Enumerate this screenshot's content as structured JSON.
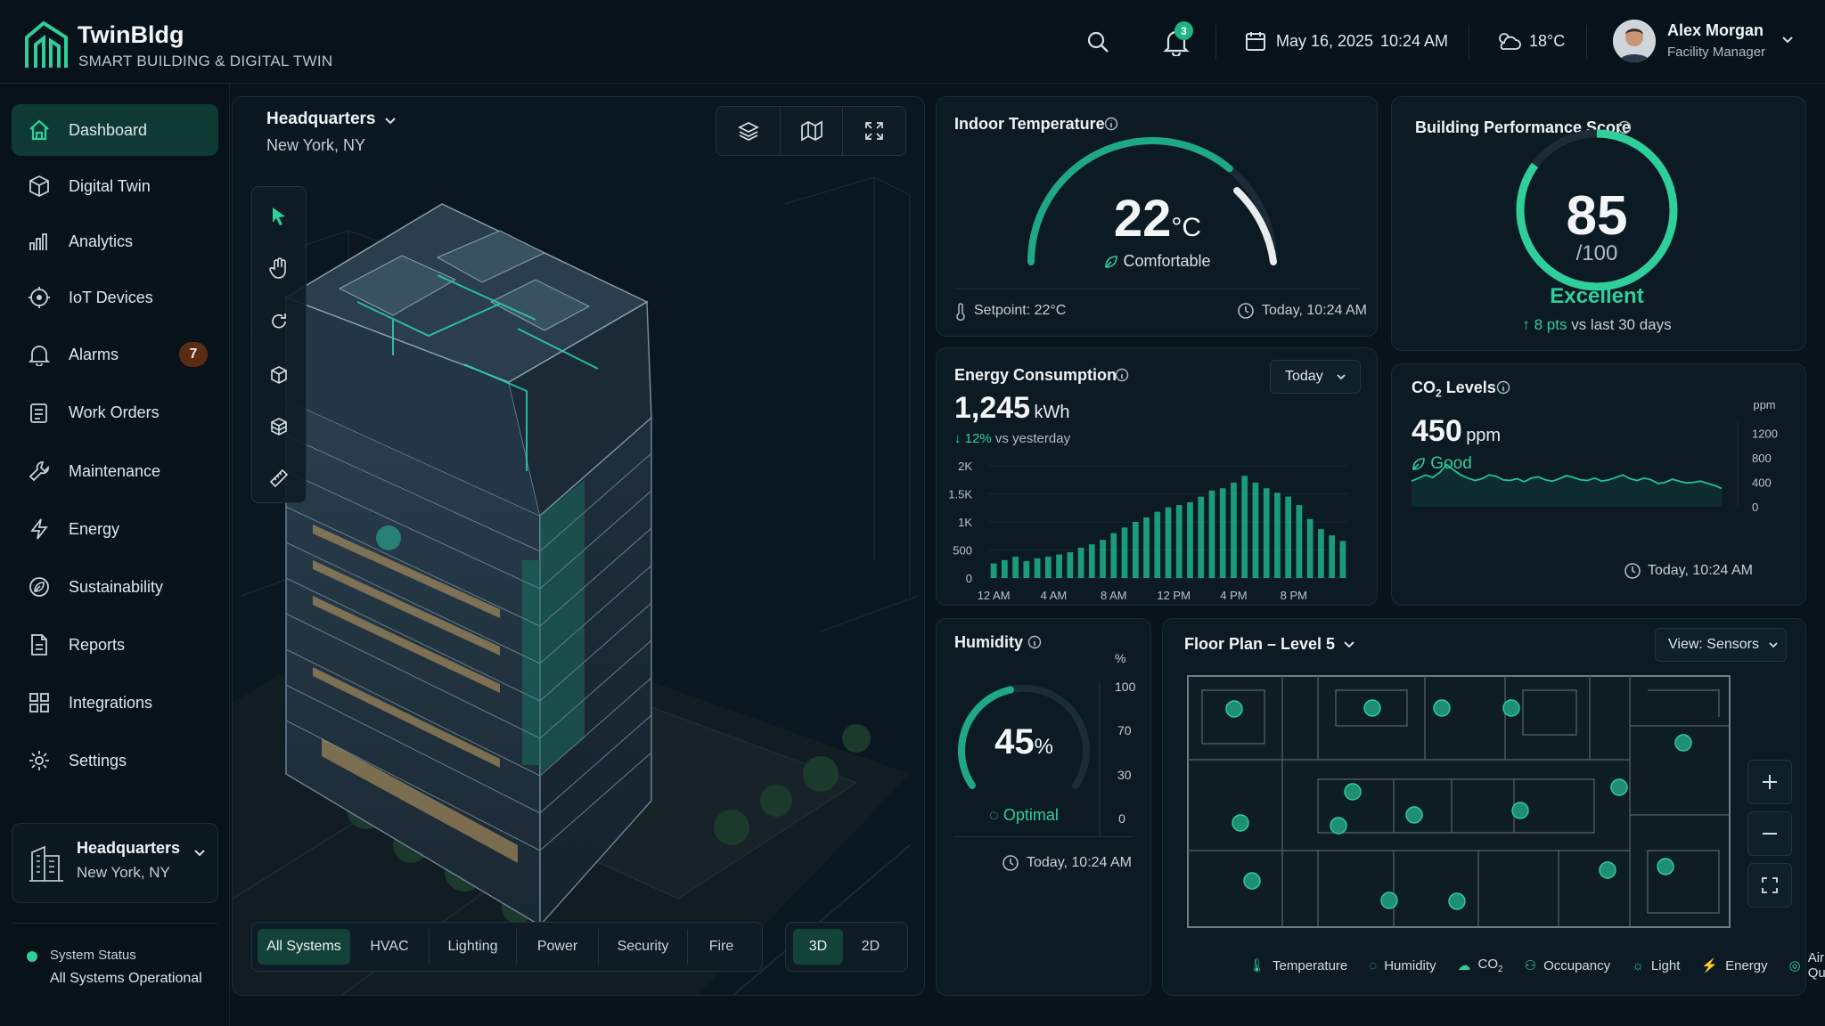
{
  "app": {
    "name": "TwinBldg",
    "tagline": "SMART BUILDING & DIGITAL TWIN"
  },
  "header": {
    "notification_count": "3",
    "date": "May 16, 2025",
    "time": "10:24 AM",
    "weather": "18°C",
    "user_name": "Alex Morgan",
    "user_role": "Facility Manager"
  },
  "sidebar": {
    "items": [
      {
        "label": "Dashboard",
        "icon": "home-icon"
      },
      {
        "label": "Digital Twin",
        "icon": "cube-icon"
      },
      {
        "label": "Analytics",
        "icon": "bar-chart-icon"
      },
      {
        "label": "IoT Devices",
        "icon": "iot-icon"
      },
      {
        "label": "Alarms",
        "icon": "bell-icon",
        "badge": "7"
      },
      {
        "label": "Work Orders",
        "icon": "clipboard-icon"
      },
      {
        "label": "Maintenance",
        "icon": "wrench-icon"
      },
      {
        "label": "Energy",
        "icon": "bolt-icon"
      },
      {
        "label": "Sustainability",
        "icon": "leaf-icon"
      },
      {
        "label": "Reports",
        "icon": "document-icon"
      },
      {
        "label": "Integrations",
        "icon": "grid-icon"
      },
      {
        "label": "Settings",
        "icon": "gear-icon"
      }
    ],
    "site": {
      "name": "Headquarters",
      "location": "New York, NY"
    },
    "system_status": {
      "label": "System Status",
      "value": "All Systems Operational"
    }
  },
  "twin": {
    "building": "Headquarters",
    "location": "New York, NY",
    "filters": [
      "All Systems",
      "HVAC",
      "Lighting",
      "Power",
      "Security",
      "Fire"
    ],
    "active_filter": "All Systems",
    "views": [
      "3D",
      "2D"
    ],
    "active_view": "3D"
  },
  "temperature": {
    "title": "Indoor Temperature",
    "value": "22",
    "unit": "°C",
    "status": "Comfortable",
    "level": 0.72,
    "setpoint": "Setpoint: 22°C",
    "updated": "Today, 10:24 AM"
  },
  "performance": {
    "title": "Building Performance Score",
    "score": "85",
    "max": "/100",
    "score_value": 85,
    "rating": "Excellent",
    "delta": "8 pts",
    "delta_suffix": "vs last 30 days"
  },
  "energy": {
    "title": "Energy Consumption",
    "period": "Today",
    "value": "1,245",
    "unit": "kWh",
    "delta": "12%",
    "delta_suffix": "vs yesterday"
  },
  "co2": {
    "title": "CO",
    "title_sub": "2",
    "title_suffix": " Levels",
    "value": "450",
    "unit": "ppm",
    "status": "Good",
    "updated": "Today, 10:24 AM"
  },
  "humidity": {
    "title": "Humidity",
    "value": "45",
    "unit": "%",
    "status": "Optimal",
    "level": 0.45,
    "updated": "Today, 10:24 AM",
    "scale_unit": "%",
    "scale": [
      "100",
      "70",
      "30",
      "0"
    ]
  },
  "floor_plan": {
    "title": "Floor Plan – Level 5",
    "view": "View: Sensors",
    "legend": [
      "Temperature",
      "Humidity",
      "CO",
      "Occupancy",
      "Light",
      "Energy",
      "Air Quality"
    ],
    "legend_co2_sub": "2"
  },
  "colors": {
    "accent": "#2fcf9b",
    "panel": "#0c1a23",
    "background": "#09131b",
    "warning_badge": "#5a2d13"
  },
  "chart_data": [
    {
      "type": "bar",
      "title": "Energy Consumption",
      "ylabel": "",
      "xlabel": "",
      "x_tick_labels": [
        "12 AM",
        "4 AM",
        "8 AM",
        "12 PM",
        "4 PM",
        "8 PM"
      ],
      "y_tick_labels": [
        "0",
        "500",
        "1K",
        "1.5K",
        "2K"
      ],
      "ylim": [
        0,
        2000
      ],
      "values": [
        260,
        320,
        380,
        300,
        350,
        380,
        420,
        460,
        540,
        600,
        680,
        800,
        900,
        1000,
        1080,
        1180,
        1260,
        1300,
        1350,
        1450,
        1560,
        1600,
        1700,
        1820,
        1700,
        1600,
        1520,
        1450,
        1300,
        1050,
        870,
        760,
        660
      ]
    },
    {
      "type": "area",
      "title": "CO2 Levels",
      "y_unit": "ppm",
      "y_tick_labels": [
        "0",
        "400",
        "800",
        "1200"
      ],
      "ylim": [
        0,
        1400
      ],
      "values": [
        420,
        470,
        520,
        480,
        560,
        690,
        600,
        520,
        470,
        430,
        460,
        520,
        500,
        440,
        430,
        460,
        410,
        470,
        490,
        440,
        420,
        460,
        510,
        480,
        440,
        430,
        470,
        420,
        440,
        480,
        520,
        460,
        430,
        470,
        440,
        380,
        400,
        450,
        420,
        390,
        400,
        420,
        380,
        350,
        300
      ]
    }
  ]
}
